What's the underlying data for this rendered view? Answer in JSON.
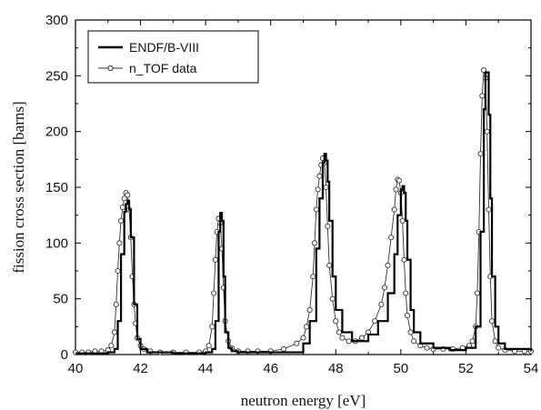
{
  "chart_data": {
    "type": "line",
    "xlabel": "neutron energy [eV]",
    "ylabel": "fission cross section [barns]",
    "xlim": [
      40,
      54
    ],
    "ylim": [
      0,
      300
    ],
    "xticks": [
      "40",
      "42",
      "44",
      "46",
      "48",
      "50",
      "52",
      "54"
    ],
    "yticks": [
      "0",
      "50",
      "100",
      "150",
      "200",
      "250",
      "300"
    ],
    "legend_position": "top-left",
    "grid": false,
    "series": [
      {
        "name": "ENDF/B-VIII",
        "style": "step-line",
        "color": "#000000",
        "x": [
          40.0,
          41.0,
          41.2,
          41.3,
          41.4,
          41.5,
          41.55,
          41.6,
          41.65,
          41.7,
          41.8,
          41.9,
          42.0,
          42.2,
          43.0,
          44.0,
          44.2,
          44.3,
          44.4,
          44.45,
          44.5,
          44.55,
          44.6,
          44.7,
          44.8,
          45.0,
          46.0,
          47.0,
          47.2,
          47.4,
          47.5,
          47.6,
          47.65,
          47.7,
          47.75,
          47.8,
          47.9,
          48.0,
          48.2,
          48.5,
          48.8,
          49.0,
          49.3,
          49.6,
          49.8,
          49.9,
          50.0,
          50.05,
          50.1,
          50.15,
          50.2,
          50.3,
          50.4,
          50.6,
          51.0,
          51.5,
          52.0,
          52.3,
          52.45,
          52.55,
          52.6,
          52.65,
          52.7,
          52.75,
          52.8,
          52.9,
          53.0,
          53.2,
          54.0
        ],
        "y": [
          1,
          2,
          5,
          30,
          90,
          128,
          135,
          138,
          130,
          105,
          45,
          14,
          5,
          2,
          1,
          2,
          5,
          30,
          110,
          127,
          120,
          70,
          20,
          6,
          3,
          2,
          2,
          10,
          30,
          95,
          140,
          172,
          180,
          174,
          155,
          120,
          70,
          40,
          20,
          12,
          12,
          18,
          30,
          55,
          90,
          125,
          148,
          151,
          145,
          120,
          85,
          40,
          20,
          10,
          6,
          4,
          6,
          25,
          110,
          220,
          253,
          253,
          215,
          140,
          70,
          25,
          10,
          5,
          3
        ]
      },
      {
        "name": "n_TOF data",
        "style": "line-circles",
        "color": "#333333",
        "x": [
          40.0,
          40.2,
          40.4,
          40.6,
          40.8,
          41.0,
          41.1,
          41.2,
          41.25,
          41.3,
          41.35,
          41.4,
          41.45,
          41.5,
          41.55,
          41.6,
          41.65,
          41.7,
          41.75,
          41.8,
          41.85,
          41.9,
          42.0,
          42.1,
          42.3,
          42.6,
          43.0,
          43.4,
          43.8,
          44.0,
          44.1,
          44.2,
          44.25,
          44.3,
          44.35,
          44.4,
          44.45,
          44.5,
          44.55,
          44.6,
          44.7,
          44.8,
          45.0,
          45.3,
          45.6,
          46.0,
          46.4,
          46.8,
          47.0,
          47.1,
          47.2,
          47.3,
          47.35,
          47.4,
          47.45,
          47.5,
          47.55,
          47.6,
          47.65,
          47.7,
          47.75,
          47.8,
          47.9,
          48.0,
          48.1,
          48.2,
          48.4,
          48.6,
          48.8,
          49.0,
          49.2,
          49.4,
          49.5,
          49.6,
          49.7,
          49.8,
          49.85,
          49.9,
          49.95,
          50.0,
          50.05,
          50.1,
          50.15,
          50.2,
          50.3,
          50.4,
          50.6,
          50.8,
          51.0,
          51.3,
          51.6,
          51.9,
          52.1,
          52.2,
          52.3,
          52.35,
          52.4,
          52.45,
          52.5,
          52.55,
          52.6,
          52.65,
          52.7,
          52.75,
          52.8,
          52.9,
          53.0,
          53.2,
          53.5,
          53.8,
          54.0
        ],
        "y": [
          2,
          2,
          2,
          3,
          3,
          4,
          8,
          20,
          45,
          75,
          100,
          120,
          132,
          140,
          145,
          143,
          130,
          105,
          70,
          45,
          28,
          15,
          8,
          5,
          3,
          2,
          2,
          2,
          2,
          3,
          8,
          25,
          55,
          85,
          110,
          122,
          118,
          95,
          60,
          30,
          12,
          6,
          3,
          3,
          3,
          3,
          5,
          10,
          15,
          25,
          40,
          70,
          100,
          130,
          148,
          160,
          170,
          176,
          172,
          150,
          115,
          80,
          50,
          30,
          20,
          15,
          12,
          12,
          15,
          20,
          30,
          45,
          60,
          80,
          105,
          130,
          148,
          157,
          156,
          145,
          120,
          85,
          55,
          35,
          20,
          12,
          8,
          6,
          5,
          5,
          5,
          6,
          8,
          12,
          25,
          55,
          110,
          180,
          232,
          255,
          248,
          200,
          130,
          70,
          30,
          12,
          6,
          4,
          3,
          3,
          3
        ]
      }
    ]
  }
}
